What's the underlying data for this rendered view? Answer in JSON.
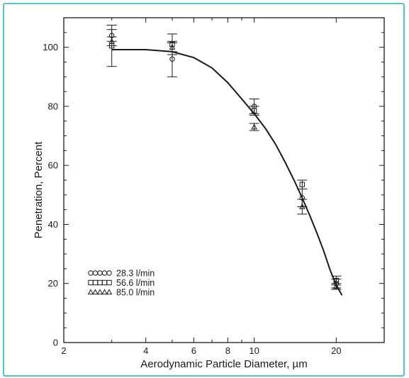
{
  "chart_data": {
    "type": "scatter",
    "xlabel": "Aerodynamic Particle Diameter, µm",
    "ylabel": "Penetration, Percent",
    "x_scale": "log",
    "xlim": [
      2,
      30
    ],
    "ylim": [
      0,
      110
    ],
    "x_ticks": [
      2,
      4,
      6,
      8,
      10,
      20
    ],
    "x_minor_ticks": [
      3,
      5,
      7,
      9,
      30
    ],
    "y_ticks": [
      0,
      20,
      40,
      60,
      80,
      100
    ],
    "grid": false,
    "legend_position": "bottom-left",
    "series": [
      {
        "name": "28.3 l/min",
        "marker": "circle",
        "points": [
          {
            "x": 3,
            "y": 104,
            "err": 2
          },
          {
            "x": 5,
            "y": 96,
            "err": 6
          },
          {
            "x": 10,
            "y": 80,
            "err": 2.5
          },
          {
            "x": 15,
            "y": 49,
            "err": 3
          },
          {
            "x": 20,
            "y": 20,
            "err": 1.5
          }
        ]
      },
      {
        "name": "56.6 l/min",
        "marker": "square",
        "points": [
          {
            "x": 3,
            "y": 100.5,
            "err": 7
          },
          {
            "x": 5,
            "y": 101,
            "err": 3.5
          },
          {
            "x": 10,
            "y": 78.5,
            "err": 1.5
          },
          {
            "x": 15,
            "y": 53.5,
            "err": 1.5
          },
          {
            "x": 20,
            "y": 21,
            "err": 1.5
          }
        ]
      },
      {
        "name": "85.0 l/min",
        "marker": "triangle",
        "points": [
          {
            "x": 3,
            "y": 102,
            "err": 1.5
          },
          {
            "x": 5,
            "y": 100,
            "err": 1.5
          },
          {
            "x": 10,
            "y": 73,
            "err": 1.2
          },
          {
            "x": 15,
            "y": 46,
            "err": 2.5
          },
          {
            "x": 20,
            "y": 19,
            "err": 1
          }
        ]
      }
    ],
    "fit_curve": {
      "points": [
        {
          "x": 3,
          "y": 99.2
        },
        {
          "x": 4,
          "y": 99.2
        },
        {
          "x": 5,
          "y": 98.5
        },
        {
          "x": 6,
          "y": 96.5
        },
        {
          "x": 7,
          "y": 93
        },
        {
          "x": 8,
          "y": 88
        },
        {
          "x": 9,
          "y": 82.5
        },
        {
          "x": 10,
          "y": 77.5
        },
        {
          "x": 11,
          "y": 72.5
        },
        {
          "x": 12,
          "y": 67
        },
        {
          "x": 13,
          "y": 61
        },
        {
          "x": 14,
          "y": 55
        },
        {
          "x": 15,
          "y": 49
        },
        {
          "x": 16,
          "y": 43
        },
        {
          "x": 17,
          "y": 37
        },
        {
          "x": 18,
          "y": 31
        },
        {
          "x": 19,
          "y": 24.5
        },
        {
          "x": 20,
          "y": 19.5
        },
        {
          "x": 21,
          "y": 16
        }
      ]
    },
    "colors": {
      "frame_border": "#56c4c4",
      "ink": "#1a1a1a"
    }
  }
}
